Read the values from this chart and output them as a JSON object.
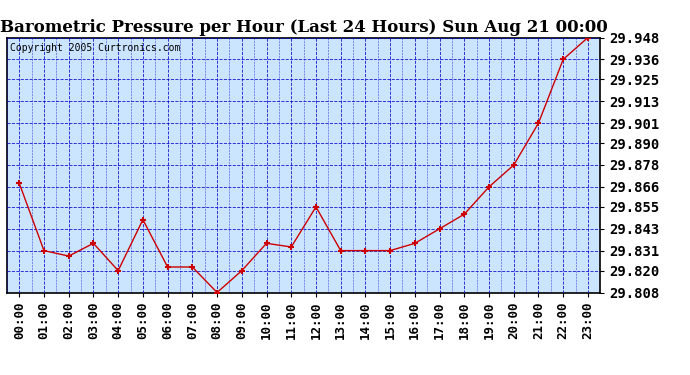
{
  "title": "Barometric Pressure per Hour (Last 24 Hours) Sun Aug 21 00:00",
  "copyright": "Copyright 2005 Curtronics.com",
  "x_labels": [
    "00:00",
    "01:00",
    "02:00",
    "03:00",
    "04:00",
    "05:00",
    "06:00",
    "07:00",
    "08:00",
    "09:00",
    "10:00",
    "11:00",
    "12:00",
    "13:00",
    "14:00",
    "15:00",
    "16:00",
    "17:00",
    "18:00",
    "19:00",
    "20:00",
    "21:00",
    "22:00",
    "23:00"
  ],
  "y_values": [
    29.868,
    29.831,
    29.828,
    29.835,
    29.82,
    29.848,
    29.822,
    29.822,
    29.808,
    29.82,
    29.835,
    29.833,
    29.855,
    29.831,
    29.831,
    29.831,
    29.835,
    29.843,
    29.851,
    29.866,
    29.878,
    29.901,
    29.936,
    29.948
  ],
  "ylim_min": 29.808,
  "ylim_max": 29.948,
  "y_ticks": [
    29.808,
    29.82,
    29.831,
    29.843,
    29.855,
    29.866,
    29.878,
    29.89,
    29.901,
    29.913,
    29.925,
    29.936,
    29.948
  ],
  "line_color": "#cc0000",
  "marker_color": "#cc0000",
  "fig_bg_color": "#ffffff",
  "plot_bg_color": "#cce5ff",
  "border_color": "#000000",
  "grid_color": "#0000cc",
  "title_fontsize": 12,
  "copyright_fontsize": 7,
  "tick_fontsize": 9,
  "ytick_fontsize": 10
}
